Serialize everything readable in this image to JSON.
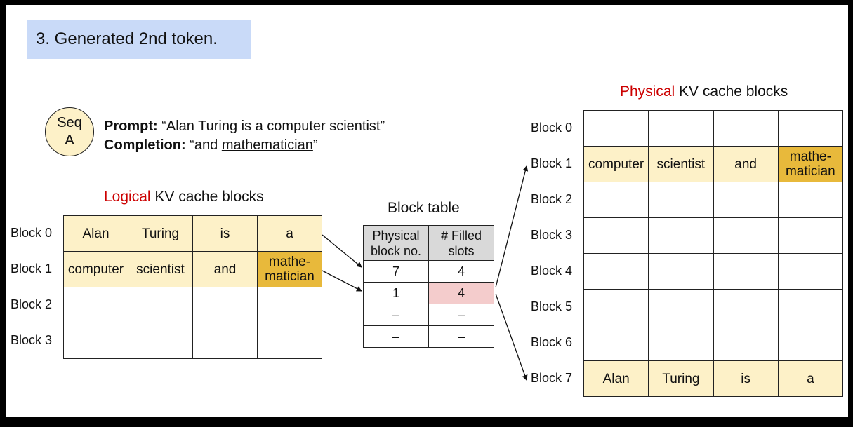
{
  "step_title": "3. Generated 2nd token.",
  "sequence": {
    "line1": "Seq",
    "line2": "A"
  },
  "prompt": {
    "label": "Prompt:",
    "text": "“Alan Turing is a computer scientist”"
  },
  "completion": {
    "label": "Completion:",
    "open_quote": "“and ",
    "new_token": "mathematician",
    "close_quote": "”"
  },
  "logical": {
    "title_red": "Logical",
    "title_rest": " KV cache blocks",
    "blocks": [
      {
        "label": "Block 0",
        "cells": [
          "Alan",
          "Turing",
          "is",
          "a"
        ]
      },
      {
        "label": "Block 1",
        "cells": [
          "computer",
          "scientist",
          "and",
          "mathe-\nmatician"
        ]
      },
      {
        "label": "Block 2",
        "cells": [
          "",
          "",
          "",
          ""
        ]
      },
      {
        "label": "Block 3",
        "cells": [
          "",
          "",
          "",
          ""
        ]
      }
    ]
  },
  "block_table": {
    "title": "Block table",
    "headers": [
      "Physical\nblock no.",
      "# Filled\nslots"
    ],
    "rows": [
      [
        "7",
        "4"
      ],
      [
        "1",
        "4"
      ],
      [
        "–",
        "–"
      ],
      [
        "–",
        "–"
      ]
    ]
  },
  "physical": {
    "title_red": "Physical",
    "title_rest": " KV cache blocks",
    "blocks": [
      {
        "label": "Block 0",
        "cells": [
          "",
          "",
          "",
          ""
        ]
      },
      {
        "label": "Block 1",
        "cells": [
          "computer",
          "scientist",
          "and",
          "mathe-\nmatician"
        ]
      },
      {
        "label": "Block 2",
        "cells": [
          "",
          "",
          "",
          ""
        ]
      },
      {
        "label": "Block 3",
        "cells": [
          "",
          "",
          "",
          ""
        ]
      },
      {
        "label": "Block 4",
        "cells": [
          "",
          "",
          "",
          ""
        ]
      },
      {
        "label": "Block 5",
        "cells": [
          "",
          "",
          "",
          ""
        ]
      },
      {
        "label": "Block 6",
        "cells": [
          "",
          "",
          "",
          ""
        ]
      },
      {
        "label": "Block 7",
        "cells": [
          "Alan",
          "Turing",
          "is",
          "a"
        ]
      }
    ]
  },
  "colors": {
    "filled": "#fdf1c8",
    "new_token": "#e8b93b",
    "updated_slot": "#f4cccc",
    "accent_red": "#cc0000",
    "title_bg": "#c9daf8"
  }
}
